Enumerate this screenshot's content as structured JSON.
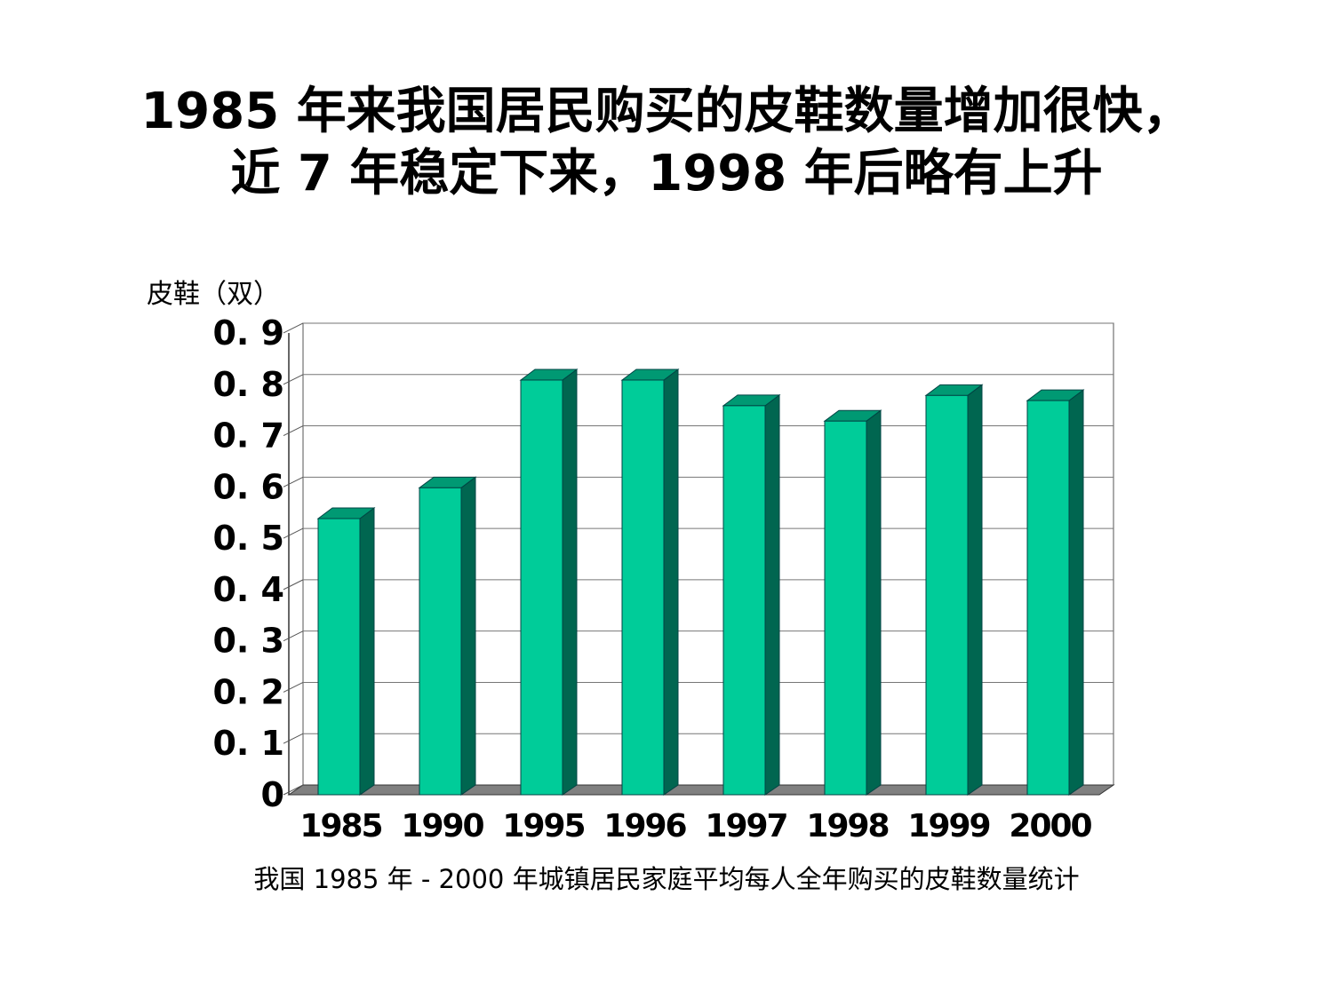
{
  "title_line1": "1985 年来我国居民购买的皮鞋数量增加很快，",
  "title_line2": "近 7 年稳定下来，1998 年后略有上升",
  "chart_data": {
    "type": "bar",
    "title": "1985 年来我国居民购买的皮鞋数量增加很快，近 7 年稳定下来，1998 年后略有上升",
    "ylabel": "皮鞋（双）",
    "xlabel": "我国 1985 年 -  2000 年城镇居民家庭平均每人全年购买的皮鞋数量统计",
    "categories": [
      "1985",
      "1990",
      "1995",
      "1996",
      "1997",
      "1998",
      "1999",
      "2000"
    ],
    "values": [
      0.54,
      0.6,
      0.81,
      0.81,
      0.76,
      0.73,
      0.78,
      0.77
    ],
    "yticks": [
      "0",
      "0. 1",
      "0. 2",
      "0. 3",
      "0. 4",
      "0. 5",
      "0. 6",
      "0. 7",
      "0. 8",
      "0. 9"
    ],
    "ylim": [
      0,
      0.9
    ],
    "grid": true,
    "colors": {
      "front": "#00CC99",
      "top": "#009973",
      "side": "#006650"
    }
  }
}
